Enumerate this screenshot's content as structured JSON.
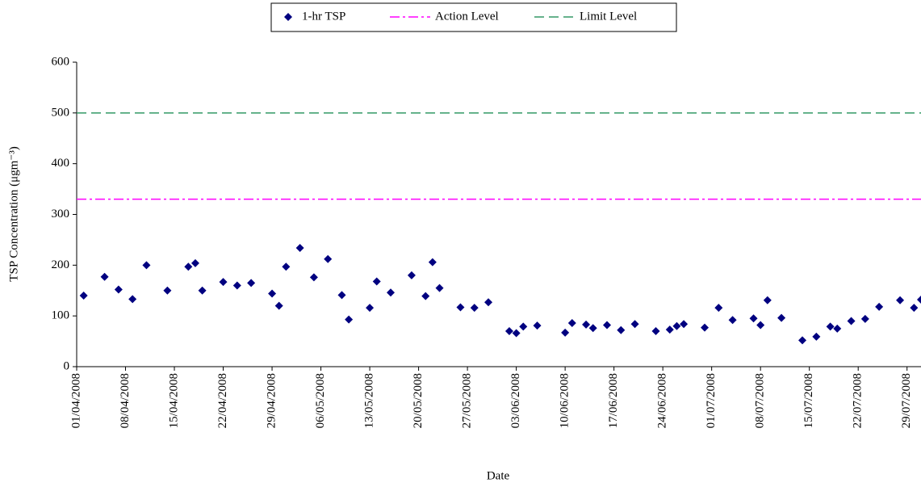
{
  "chart_data": {
    "type": "scatter",
    "x": [
      "02/04/2008",
      "05/04/2008",
      "07/04/2008",
      "09/04/2008",
      "11/04/2008",
      "14/04/2008",
      "17/04/2008",
      "18/04/2008",
      "19/04/2008",
      "22/04/2008",
      "24/04/2008",
      "26/04/2008",
      "29/04/2008",
      "30/04/2008",
      "01/05/2008",
      "03/05/2008",
      "05/05/2008",
      "07/05/2008",
      "09/05/2008",
      "10/05/2008",
      "13/05/2008",
      "14/05/2008",
      "16/05/2008",
      "19/05/2008",
      "21/05/2008",
      "22/05/2008",
      "23/05/2008",
      "26/05/2008",
      "28/05/2008",
      "30/05/2008",
      "02/06/2008",
      "03/06/2008",
      "04/06/2008",
      "06/06/2008",
      "10/06/2008",
      "11/06/2008",
      "13/06/2008",
      "14/06/2008",
      "16/06/2008",
      "18/06/2008",
      "20/06/2008",
      "23/06/2008",
      "25/06/2008",
      "26/06/2008",
      "27/06/2008",
      "30/06/2008",
      "02/07/2008",
      "04/07/2008",
      "07/07/2008",
      "08/07/2008",
      "09/07/2008",
      "11/07/2008",
      "14/07/2008",
      "16/07/2008",
      "18/07/2008",
      "19/07/2008",
      "21/07/2008",
      "23/07/2008",
      "25/07/2008",
      "28/07/2008",
      "30/07/2008",
      "31/07/2008"
    ],
    "series": [
      {
        "name": "1-hr TSP",
        "color": "#000080",
        "values": [
          140,
          177,
          152,
          133,
          200,
          150,
          197,
          204,
          150,
          167,
          160,
          165,
          144,
          120,
          197,
          234,
          176,
          212,
          141,
          93,
          116,
          168,
          146,
          180,
          139,
          206,
          155,
          117,
          116,
          127,
          70,
          66,
          79,
          81,
          67,
          86,
          83,
          76,
          82,
          72,
          84,
          70,
          73,
          80,
          84,
          77,
          116,
          92,
          95,
          82,
          131,
          96,
          52,
          59,
          79,
          75,
          90,
          94,
          118,
          131,
          116,
          132
        ]
      }
    ],
    "reference_lines": [
      {
        "name": "Action Level",
        "value": 330,
        "color": "#ff00ff",
        "dash": "dashdot"
      },
      {
        "name": "Limit Level",
        "value": 500,
        "color": "#339966",
        "dash": "dashed"
      }
    ],
    "xlabel": "Date",
    "ylabel": "TSP Concentration (μgm⁻³)",
    "xlim": [
      "01/04/2008",
      "31/07/2008"
    ],
    "xticks": [
      "01/04/2008",
      "08/04/2008",
      "15/04/2008",
      "22/04/2008",
      "29/04/2008",
      "06/05/2008",
      "13/05/2008",
      "20/05/2008",
      "27/05/2008",
      "03/06/2008",
      "10/06/2008",
      "17/06/2008",
      "24/06/2008",
      "01/07/2008",
      "08/07/2008",
      "15/07/2008",
      "22/07/2008",
      "29/07/2008"
    ],
    "ylim": [
      0,
      600
    ],
    "yticks": [
      0,
      100,
      200,
      300,
      400,
      500,
      600
    ],
    "grid": false,
    "legend": "top"
  }
}
